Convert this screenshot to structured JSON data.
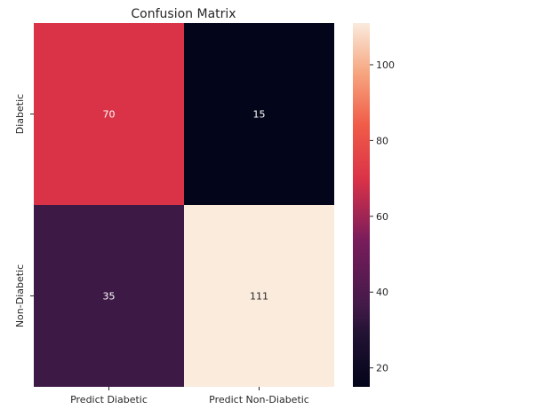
{
  "chart_data": {
    "type": "heatmap",
    "title": "Confusion Matrix",
    "xlabel": "",
    "ylabel": "",
    "x_categories": [
      "Predict Diabetic",
      "Predict Non-Diabetic"
    ],
    "y_categories": [
      "Diabetic",
      "Non-Diabetic"
    ],
    "values": [
      [
        70,
        15
      ],
      [
        35,
        111
      ]
    ],
    "value_range": [
      15,
      111
    ],
    "colormap": "rocket",
    "colorbar_ticks": [
      20,
      40,
      60,
      80,
      100
    ],
    "grid": false
  }
}
